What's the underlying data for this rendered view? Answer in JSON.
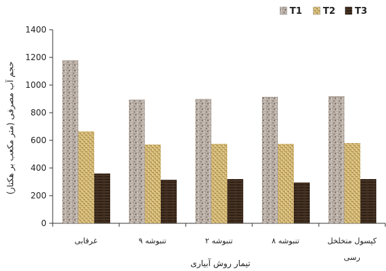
{
  "chart_data": {
    "type": "bar",
    "categories": [
      [
        "غرقابی"
      ],
      [
        "تنبوشه ۹"
      ],
      [
        "تنبوشه ۲"
      ],
      [
        "تنبوشه ۸"
      ],
      [
        "کپسول متخلخل",
        "رسی"
      ]
    ],
    "series": [
      {
        "name": "T1",
        "values": [
          1180,
          895,
          900,
          915,
          920
        ],
        "color": "#b5aba2",
        "pattern": "granite"
      },
      {
        "name": "T2",
        "values": [
          665,
          570,
          575,
          575,
          580
        ],
        "color": "#d6bd7a",
        "pattern": "weave"
      },
      {
        "name": "T3",
        "values": [
          360,
          315,
          320,
          295,
          320
        ],
        "color": "#3a2a1e",
        "pattern": "wood"
      }
    ],
    "title": "",
    "xlabel": "تیمار روش آبیاری",
    "ylabel": "حجم آب مصرفی (متر مکعب بر هکتار)",
    "ylim": [
      0,
      1400
    ],
    "yticks": [
      0,
      200,
      400,
      600,
      800,
      1000,
      1200,
      1400
    ],
    "grid": false,
    "legend_position": "top-right"
  }
}
